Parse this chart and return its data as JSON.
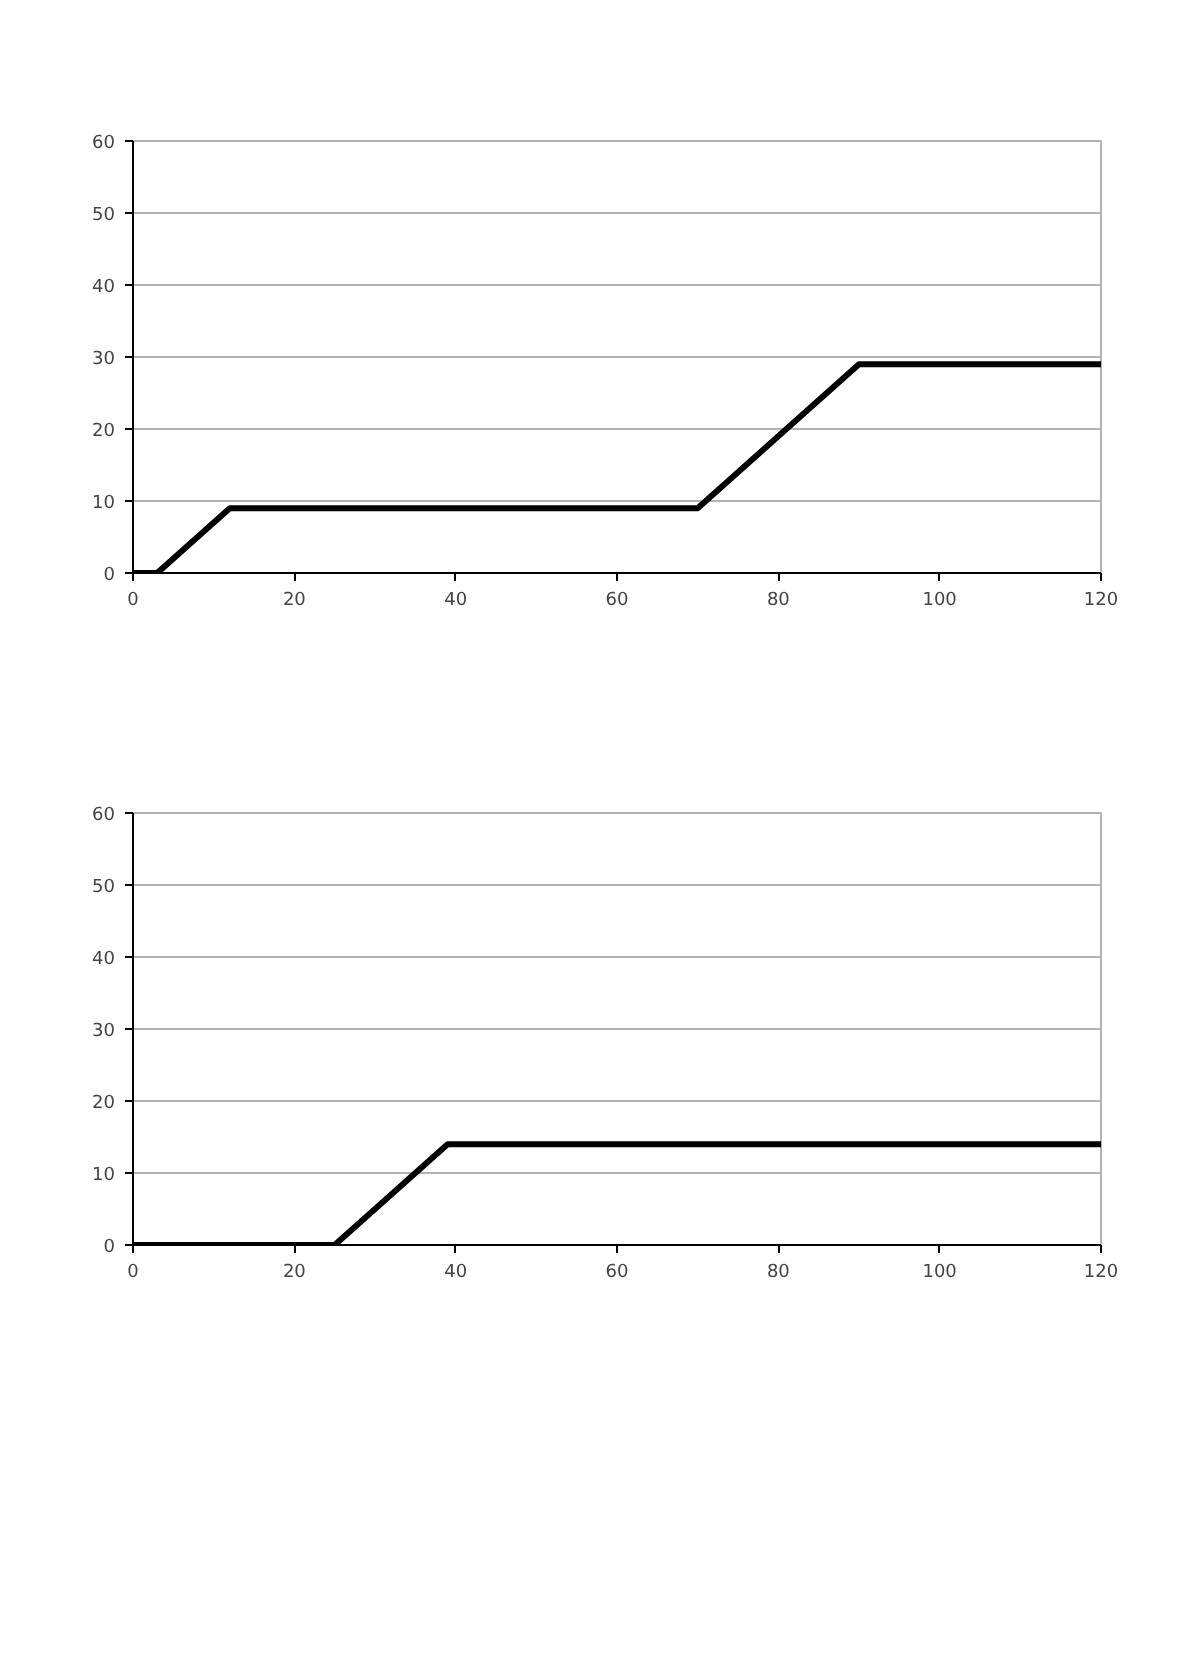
{
  "chart_data": [
    {
      "type": "line",
      "x": [
        0,
        3,
        12,
        70,
        90,
        120
      ],
      "series": [
        {
          "color": "#000000",
          "values": [
            0,
            0,
            9,
            9,
            29,
            29
          ]
        }
      ],
      "xlim": [
        0,
        120
      ],
      "ylim": [
        0,
        60
      ],
      "xticks": [
        0,
        20,
        40,
        60,
        80,
        100,
        120
      ],
      "yticks": [
        0,
        10,
        20,
        30,
        40,
        50,
        60
      ],
      "grid": "y",
      "marker": "none",
      "line_style": "solid"
    },
    {
      "type": "line",
      "x": [
        0,
        25,
        39,
        120
      ],
      "series": [
        {
          "color": "#000000",
          "values": [
            0,
            0,
            14,
            14
          ]
        }
      ],
      "xlim": [
        0,
        120
      ],
      "ylim": [
        0,
        60
      ],
      "xticks": [
        0,
        20,
        40,
        60,
        80,
        100,
        120
      ],
      "yticks": [
        0,
        10,
        20,
        30,
        40,
        50,
        60
      ],
      "grid": "y",
      "marker": "none",
      "line_style": "solid"
    }
  ]
}
